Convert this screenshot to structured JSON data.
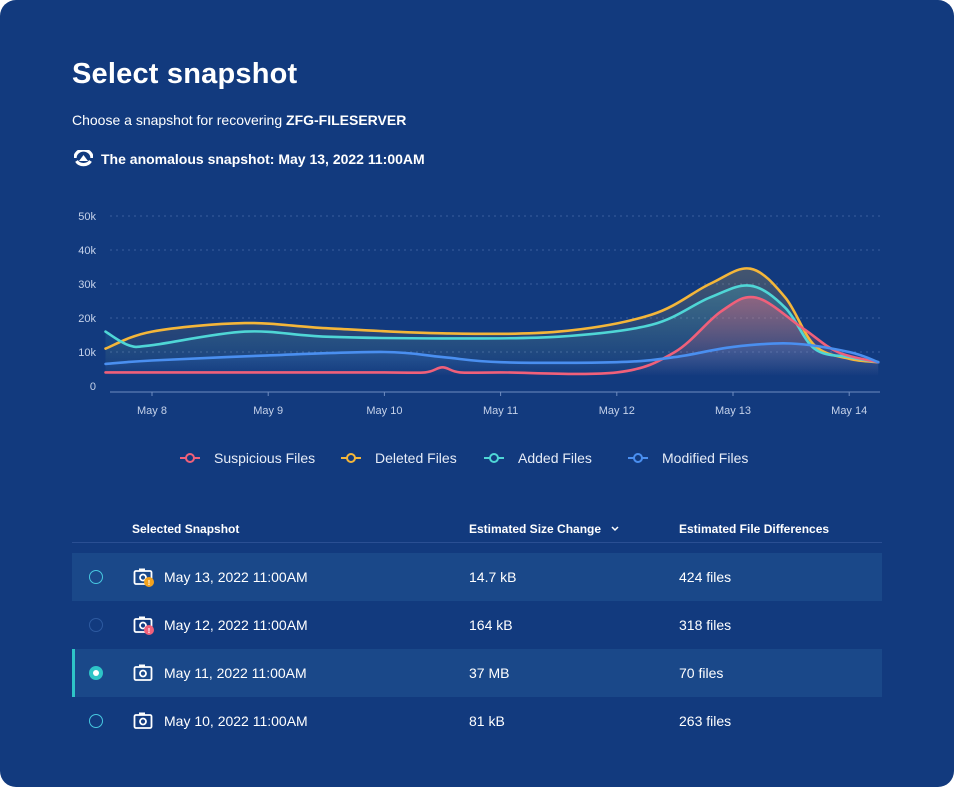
{
  "page": {
    "title": "Select snapshot",
    "subtitle_prefix": "Choose a snapshot for recovering",
    "server": "ZFG-FILESERVER",
    "anomaly_text": "The anomalous snapshot: May 13, 2022 11:00AM"
  },
  "colors": {
    "background": "#123a7e",
    "suspicious": "#f0607a",
    "deleted": "#f4b63a",
    "added": "#4fd6d6",
    "modified": "#4a8ff0",
    "selected_accent": "#2ec4c7"
  },
  "chart_data": {
    "type": "line",
    "categories": [
      "May 8",
      "May 9",
      "May 10",
      "May 11",
      "May 12",
      "May 13",
      "May 14"
    ],
    "y_ticks": [
      "50k",
      "40k",
      "30k",
      "20k",
      "10k",
      "0"
    ],
    "ylim": [
      0,
      50000
    ],
    "grid": true,
    "legend_position": "bottom",
    "series": [
      {
        "name": "Suspicious Files",
        "color": "#f0607a",
        "x": [
          -0.4,
          0,
          1,
          2,
          2.35,
          2.5,
          2.65,
          3,
          4,
          4.5,
          4.9,
          5.2,
          5.6,
          5.9,
          6.25
        ],
        "values": [
          4000,
          4000,
          4000,
          4000,
          4000,
          5500,
          4000,
          4000,
          4000,
          10000,
          22000,
          26000,
          17000,
          10000,
          7000
        ]
      },
      {
        "name": "Deleted Files",
        "color": "#f4b63a",
        "x": [
          -0.4,
          0,
          0.8,
          1.5,
          2.5,
          3.5,
          4.3,
          4.8,
          5.15,
          5.45,
          5.7,
          6.0,
          6.25
        ],
        "values": [
          11000,
          16000,
          18500,
          17000,
          15500,
          16000,
          21000,
          30000,
          34500,
          26000,
          12000,
          8000,
          7000
        ]
      },
      {
        "name": "Added Files",
        "color": "#4fd6d6",
        "x": [
          -0.4,
          -0.2,
          0,
          0.8,
          1.5,
          2.5,
          3.5,
          4.3,
          4.8,
          5.15,
          5.45,
          5.7,
          6.0,
          6.25
        ],
        "values": [
          16000,
          12000,
          12000,
          16000,
          14500,
          14000,
          14500,
          18000,
          26000,
          29500,
          23000,
          11000,
          8500,
          7000
        ]
      },
      {
        "name": "Modified Files",
        "color": "#4a8ff0",
        "x": [
          -0.4,
          0,
          1,
          2,
          2.5,
          3,
          4,
          4.5,
          5,
          5.5,
          6,
          6.25
        ],
        "values": [
          6500,
          7500,
          9000,
          10000,
          8500,
          7000,
          7000,
          8500,
          11500,
          12500,
          10000,
          7000
        ]
      }
    ]
  },
  "table": {
    "headers": {
      "snapshot": "Selected Snapshot",
      "size": "Estimated Size Change",
      "files": "Estimated File Differences"
    },
    "rows": [
      {
        "snapshot": "May 13, 2022 11:00AM",
        "size": "14.7 kB",
        "files": "424 files",
        "badge": "!",
        "badge_color": "#f4a21c"
      },
      {
        "snapshot": "May 12, 2022 11:00AM",
        "size": "164 kB",
        "files": "318 files",
        "badge": "!",
        "badge_color": "#f0607a"
      },
      {
        "snapshot": "May 11, 2022 11:00AM",
        "size": "37 MB",
        "files": "70 files",
        "badge": "",
        "badge_color": ""
      },
      {
        "snapshot": "May 10, 2022 11:00AM",
        "size": "81 kB",
        "files": "263 files",
        "badge": "",
        "badge_color": ""
      }
    ]
  }
}
